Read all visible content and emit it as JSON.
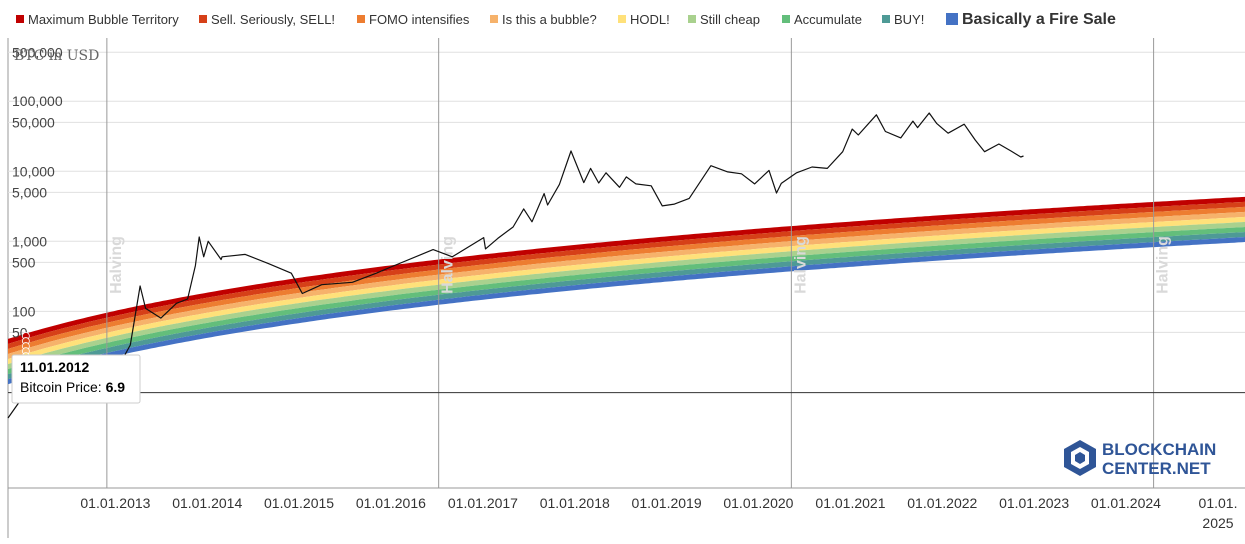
{
  "chart_data": {
    "type": "area",
    "ylabel": "BTC in USD",
    "yscale": "log",
    "ylim": [
      0.3,
      800000
    ],
    "xlim": [
      "2011-11-01",
      "2025-01-01"
    ],
    "y_ticks": [
      {
        "value": 500000,
        "label": "500,000"
      },
      {
        "value": 100000,
        "label": "100,000"
      },
      {
        "value": 50000,
        "label": "50,000"
      },
      {
        "value": 10000,
        "label": "10,000"
      },
      {
        "value": 5000,
        "label": "5,000"
      },
      {
        "value": 1000,
        "label": "1,000"
      },
      {
        "value": 500,
        "label": "500"
      },
      {
        "value": 100,
        "label": "100"
      },
      {
        "value": 50,
        "label": "50"
      }
    ],
    "x_ticks": [
      {
        "date": "2013-01-01",
        "label": "01.01.2013"
      },
      {
        "date": "2014-01-01",
        "label": "01.01.2014"
      },
      {
        "date": "2015-01-01",
        "label": "01.01.2015"
      },
      {
        "date": "2016-01-01",
        "label": "01.01.2016"
      },
      {
        "date": "2017-01-01",
        "label": "01.01.2017"
      },
      {
        "date": "2018-01-01",
        "label": "01.01.2018"
      },
      {
        "date": "2019-01-01",
        "label": "01.01.2019"
      },
      {
        "date": "2020-01-01",
        "label": "01.01.2020"
      },
      {
        "date": "2021-01-01",
        "label": "01.01.2021"
      },
      {
        "date": "2022-01-01",
        "label": "01.01.2022"
      },
      {
        "date": "2023-01-01",
        "label": "01.01.2023"
      },
      {
        "date": "2024-01-01",
        "label": "01.01.2024"
      },
      {
        "date": "2025-01-01",
        "label": "01.01. 2025"
      }
    ],
    "bands": [
      {
        "name": "Maximum Bubble Territory",
        "color": "#c00000"
      },
      {
        "name": "Sell. Seriously, SELL!",
        "color": "#d64018"
      },
      {
        "name": "FOMO intensifies",
        "color": "#ed7d31"
      },
      {
        "name": "Is this a bubble?",
        "color": "#f6b26b"
      },
      {
        "name": "HODL!",
        "color": "#ffe17a"
      },
      {
        "name": "Still cheap",
        "color": "#a9d18e"
      },
      {
        "name": "Accumulate",
        "color": "#63be7b"
      },
      {
        "name": "BUY!",
        "color": "#4e9a96"
      },
      {
        "name": "Basically a Fire Sale",
        "color": "#4472c4"
      }
    ],
    "halvings": [
      {
        "date": "2012-11-28",
        "label": "Halving"
      },
      {
        "date": "2016-07-09",
        "label": "Halving"
      },
      {
        "date": "2020-05-11",
        "label": "Halving"
      },
      {
        "date": "2024-04-20",
        "label": "Halving"
      }
    ],
    "series": [
      {
        "x": [
          "2011-11-01",
          "2012-01-11",
          "2012-04-01",
          "2012-07-01",
          "2012-09-01",
          "2012-11-01",
          "2013-01-01",
          "2013-03-01",
          "2013-04-09",
          "2013-05-01",
          "2013-07-01",
          "2013-09-01",
          "2013-10-15",
          "2013-11-15",
          "2013-11-30",
          "2013-12-18",
          "2014-01-05",
          "2014-02-25",
          "2014-03-01",
          "2014-06-01",
          "2014-09-01",
          "2014-12-01",
          "2015-01-14",
          "2015-04-01",
          "2015-08-01",
          "2015-11-04",
          "2016-01-01",
          "2016-06-17",
          "2016-09-01",
          "2017-01-04",
          "2017-01-11",
          "2017-03-01",
          "2017-05-01",
          "2017-06-12",
          "2017-07-15",
          "2017-09-01",
          "2017-09-15",
          "2017-11-01",
          "2017-12-17",
          "2018-02-06",
          "2018-03-05",
          "2018-04-06",
          "2018-05-05",
          "2018-06-28",
          "2018-07-25",
          "2018-09-01",
          "2018-11-01",
          "2018-12-15",
          "2019-02-01",
          "2019-04-01",
          "2019-06-26",
          "2019-09-01",
          "2019-10-26",
          "2019-12-17",
          "2020-02-12",
          "2020-03-13",
          "2020-04-01",
          "2020-06-01",
          "2020-08-01",
          "2020-10-01",
          "2020-12-01",
          "2021-01-08",
          "2021-02-01",
          "2021-04-14",
          "2021-05-20",
          "2021-07-20",
          "2021-09-06",
          "2021-09-25",
          "2021-11-10",
          "2021-12-10",
          "2022-01-24",
          "2022-03-29",
          "2022-05-12",
          "2022-06-18",
          "2022-08-14",
          "2022-10-01",
          "2022-11-09",
          "2022-11-20"
        ],
        "y": [
          3,
          6.9,
          5,
          7.5,
          11,
          11,
          13.5,
          33,
          230,
          110,
          80,
          130,
          150,
          450,
          1150,
          600,
          1000,
          550,
          600,
          650,
          480,
          350,
          180,
          240,
          260,
          350,
          430,
          760,
          600,
          1130,
          780,
          1100,
          1600,
          2900,
          1900,
          4800,
          3300,
          6500,
          19500,
          6900,
          11000,
          6800,
          9500,
          5900,
          8300,
          6600,
          6200,
          3200,
          3400,
          4100,
          12000,
          9800,
          9200,
          6600,
          10300,
          4900,
          6700,
          9500,
          11500,
          11000,
          19000,
          40000,
          33000,
          64000,
          37000,
          30000,
          52000,
          42000,
          68000,
          48000,
          35000,
          47000,
          28000,
          19000,
          24500,
          19500,
          16000,
          16500
        ]
      }
    ],
    "annotation": {
      "date": "11.01.2012",
      "label": "Bitcoin Price: ",
      "value": "6.9"
    }
  },
  "logo": {
    "line1": "BLOCKCHAIN",
    "line2": "CENTER.NET"
  }
}
